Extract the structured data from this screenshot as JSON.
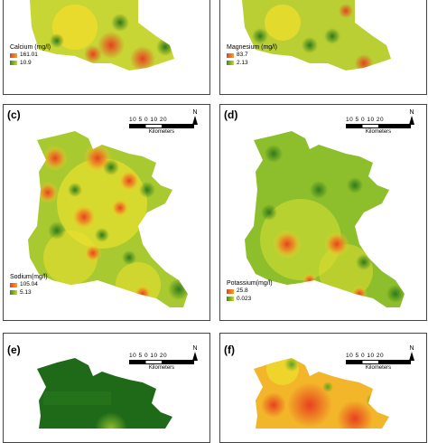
{
  "panels": [
    {
      "id": "a",
      "label": "",
      "legend": {
        "title": "Calcium (mg/l)",
        "high": "161.01",
        "low": "10.9"
      }
    },
    {
      "id": "b",
      "label": "",
      "legend": {
        "title": "Magnesium (mg/l)",
        "high": "83.7",
        "low": "2.13"
      }
    },
    {
      "id": "c",
      "label": "(c)",
      "legend": {
        "title": "Sodium(mg/l)",
        "high": "105.04",
        "low": "5.13"
      }
    },
    {
      "id": "d",
      "label": "(d)",
      "legend": {
        "title": "Potassium(mg/l)",
        "high": "25.8",
        "low": "0.023"
      }
    },
    {
      "id": "e",
      "label": "(e)",
      "legend": null
    },
    {
      "id": "f",
      "label": "(f)",
      "legend": null
    }
  ],
  "scale": {
    "ticks": "10 5 0    10    20",
    "unit": "Kilometers"
  },
  "north": "N",
  "colors": {
    "high": "#e8411f",
    "mid": "#f4e02a",
    "low": "#3c8a1e",
    "dark": "#1f6a18"
  }
}
